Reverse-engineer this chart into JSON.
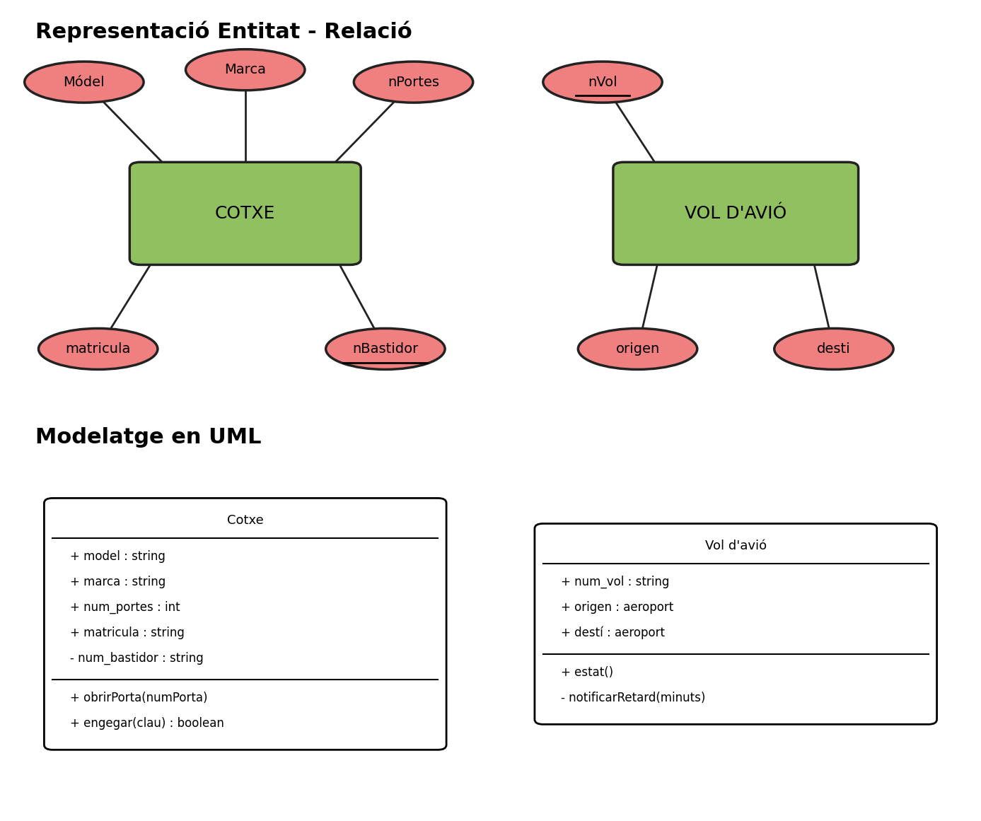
{
  "title_er": "Representació Entitat - Relació",
  "title_uml": "Modelatge en UML",
  "er_bg": "#fdf8e1",
  "uml_bg": "#dceeff",
  "ellipse_color": "#f08080",
  "ellipse_edge": "#222222",
  "rect_color": "#90c060",
  "rect_edge": "#222222",
  "cotxe_label": "COTXE",
  "vol_label": "VOL D'AVIÓ",
  "cotxe_attrs": [
    "Módel",
    "Marca",
    "nPortes",
    "matricula",
    "nBastidor"
  ],
  "cotxe_underline": [
    false,
    false,
    false,
    false,
    true
  ],
  "vol_attrs": [
    "nVol",
    "origen",
    "desti"
  ],
  "vol_underline": [
    true,
    false,
    false
  ],
  "uml_cotxe_name": "Cotxe",
  "uml_cotxe_attrs": [
    "+ model : string",
    "+ marca : string",
    "+ num_portes : int",
    "+ matricula : string",
    "- num_bastidor : string"
  ],
  "uml_cotxe_methods": [
    "+ obrirPorta(numPorta)",
    "+ engegar(clau) : boolean"
  ],
  "uml_vol_name": "Vol d'avió",
  "uml_vol_attrs": [
    "+ num_vol : string",
    "+ origen : aeroport",
    "+ destí : aeroport"
  ],
  "uml_vol_methods": [
    "+ estat()",
    "- notificarRetard(minuts)"
  ]
}
